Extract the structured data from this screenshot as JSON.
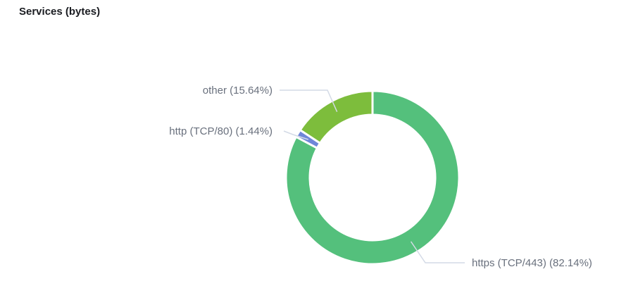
{
  "panel": {
    "title": "Services (bytes)"
  },
  "chart_data": {
    "type": "pie",
    "donut": true,
    "title": "Services (bytes)",
    "slices": [
      {
        "label": "https (TCP/443) (82.14%)",
        "name": "https (TCP/443)",
        "value": 82.14,
        "color": "#54c07c"
      },
      {
        "label": "http (TCP/80) (1.44%)",
        "name": "http (TCP/80)",
        "value": 1.44,
        "color": "#6f87d8"
      },
      {
        "label": "other (15.64%)",
        "name": "other",
        "value": 15.64,
        "color": "#7dbd3c"
      }
    ],
    "legend": "none",
    "labels": "outside-with-leader-lines"
  }
}
